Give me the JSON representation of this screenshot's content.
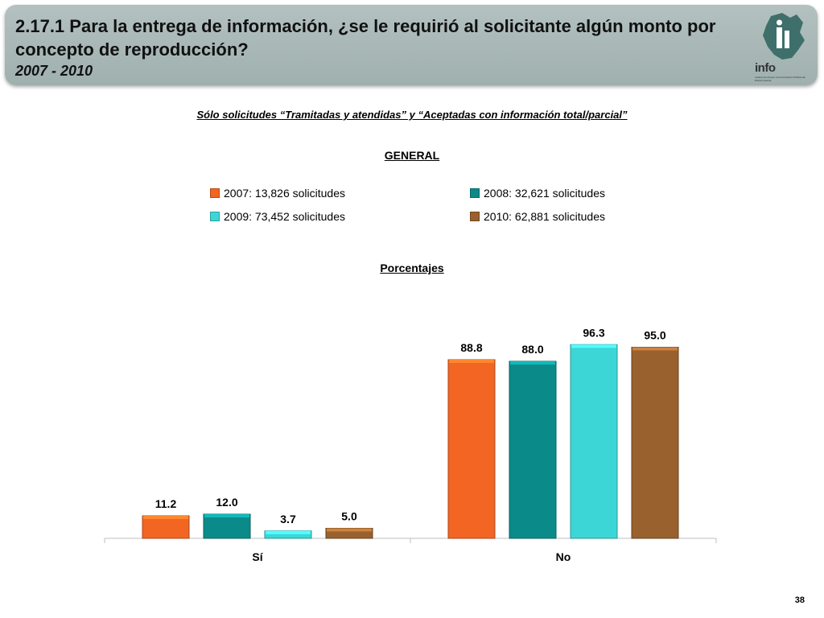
{
  "header": {
    "title": "2.17.1 Para la entrega de información, ¿se le requirió al solicitante algún monto por concepto de reproducción?",
    "years": "2007 - 2010",
    "logo_text": "info",
    "logo_sub": "Instituto de Acceso a la Información Pública del Distrito Federal"
  },
  "subtitle": "Sólo solicitudes “Tramitadas y atendidas” y “Aceptadas con información total/parcial”",
  "general_label": "GENERAL",
  "percent_label": "Porcentajes",
  "page_number": "38",
  "colors": {
    "s2007": "#f26522",
    "s2008": "#0b8a8a",
    "s2009": "#3dd6d6",
    "s2010": "#98612e",
    "header_bg": "#a9b8b7"
  },
  "chart_data": {
    "type": "bar",
    "categories": [
      "Sí",
      "No"
    ],
    "series": [
      {
        "name": "2007: 13,826 solicitudes",
        "values": [
          11.2,
          88.8
        ],
        "labels": [
          "11.2",
          "88.8"
        ]
      },
      {
        "name": "2008: 32,621 solicitudes",
        "values": [
          12.0,
          88.0
        ],
        "labels": [
          "12.0",
          "88.0"
        ]
      },
      {
        "name": "2009: 73,452 solicitudes",
        "values": [
          3.7,
          96.3
        ],
        "labels": [
          "3.7",
          "96.3"
        ]
      },
      {
        "name": "2010: 62,881 solicitudes",
        "values": [
          5.0,
          95.0
        ],
        "labels": [
          "5.0",
          "95.0"
        ]
      }
    ],
    "ylim": [
      0,
      100
    ],
    "grid": false,
    "legend_position": "top"
  }
}
